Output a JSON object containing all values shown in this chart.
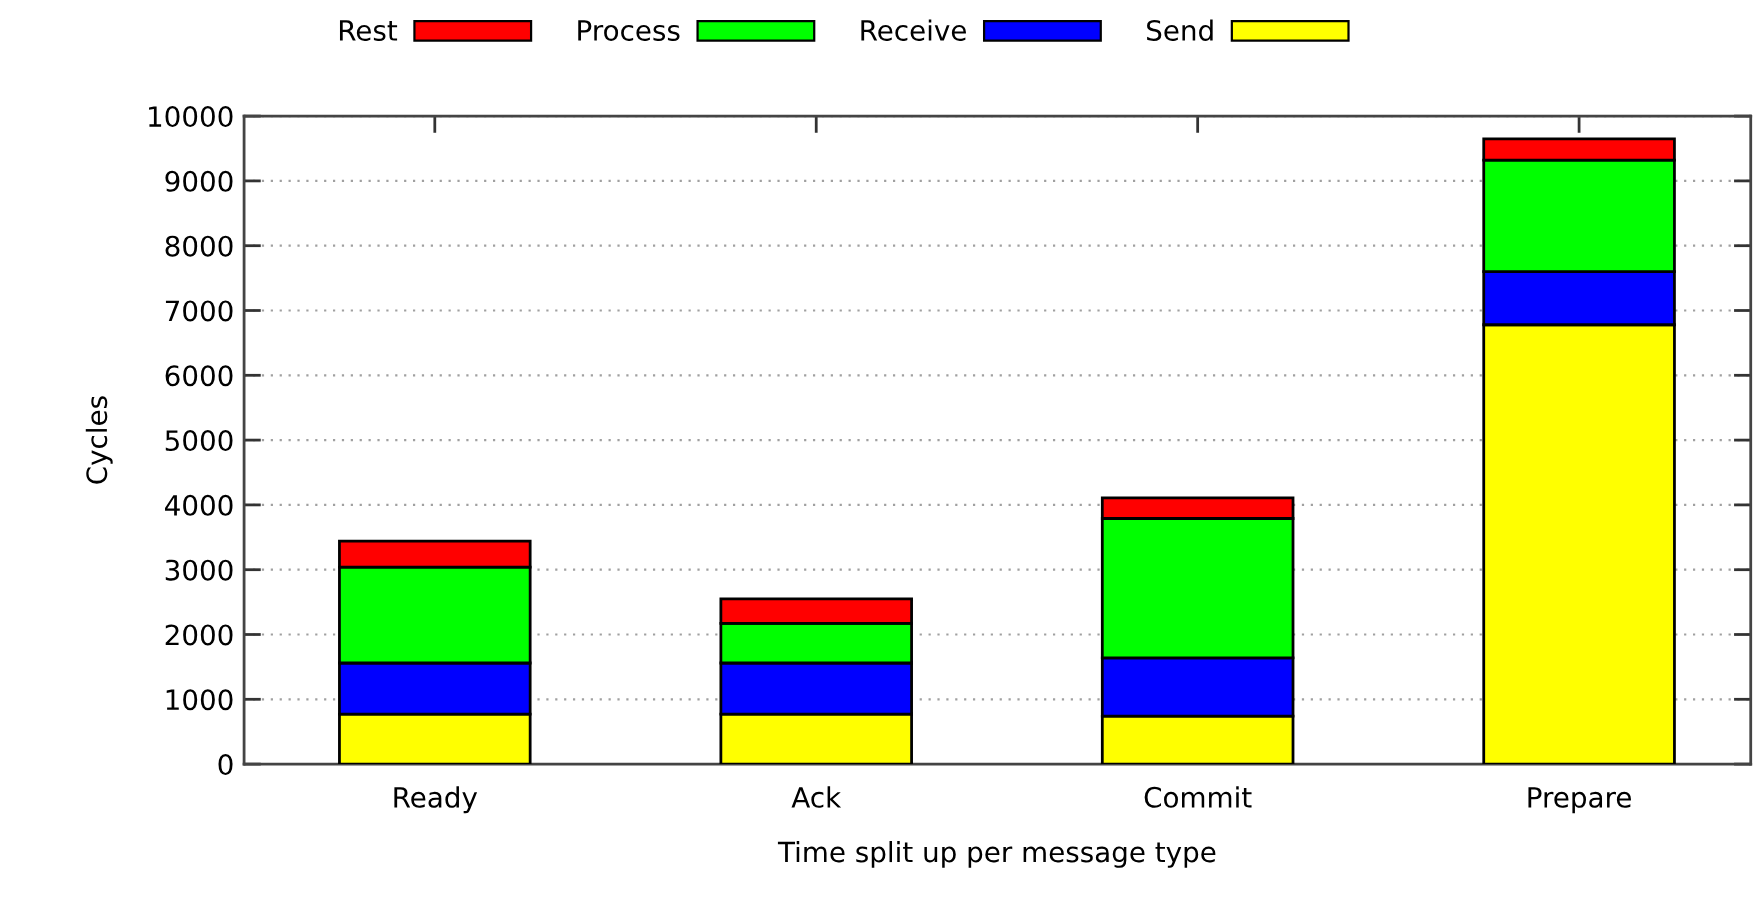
{
  "chart_data": {
    "type": "bar",
    "stacked": true,
    "xlabel": "Time split up per message type",
    "ylabel": "Cycles",
    "categories": [
      "Ready",
      "Ack",
      "Commit",
      "Prepare"
    ],
    "series": [
      {
        "name": "Send",
        "color": "#ffff00",
        "values": [
          770,
          770,
          740,
          6780
        ]
      },
      {
        "name": "Receive",
        "color": "#0000ff",
        "values": [
          790,
          790,
          900,
          820
        ]
      },
      {
        "name": "Process",
        "color": "#00ff00",
        "values": [
          1480,
          610,
          2150,
          1720
        ]
      },
      {
        "name": "Rest",
        "color": "#ff0000",
        "values": [
          400,
          380,
          320,
          330
        ]
      }
    ],
    "ylim": [
      0,
      10000
    ],
    "yticks": [
      0,
      1000,
      2000,
      3000,
      4000,
      5000,
      6000,
      7000,
      8000,
      9000,
      10000
    ],
    "grid": "y",
    "legend": "top"
  }
}
